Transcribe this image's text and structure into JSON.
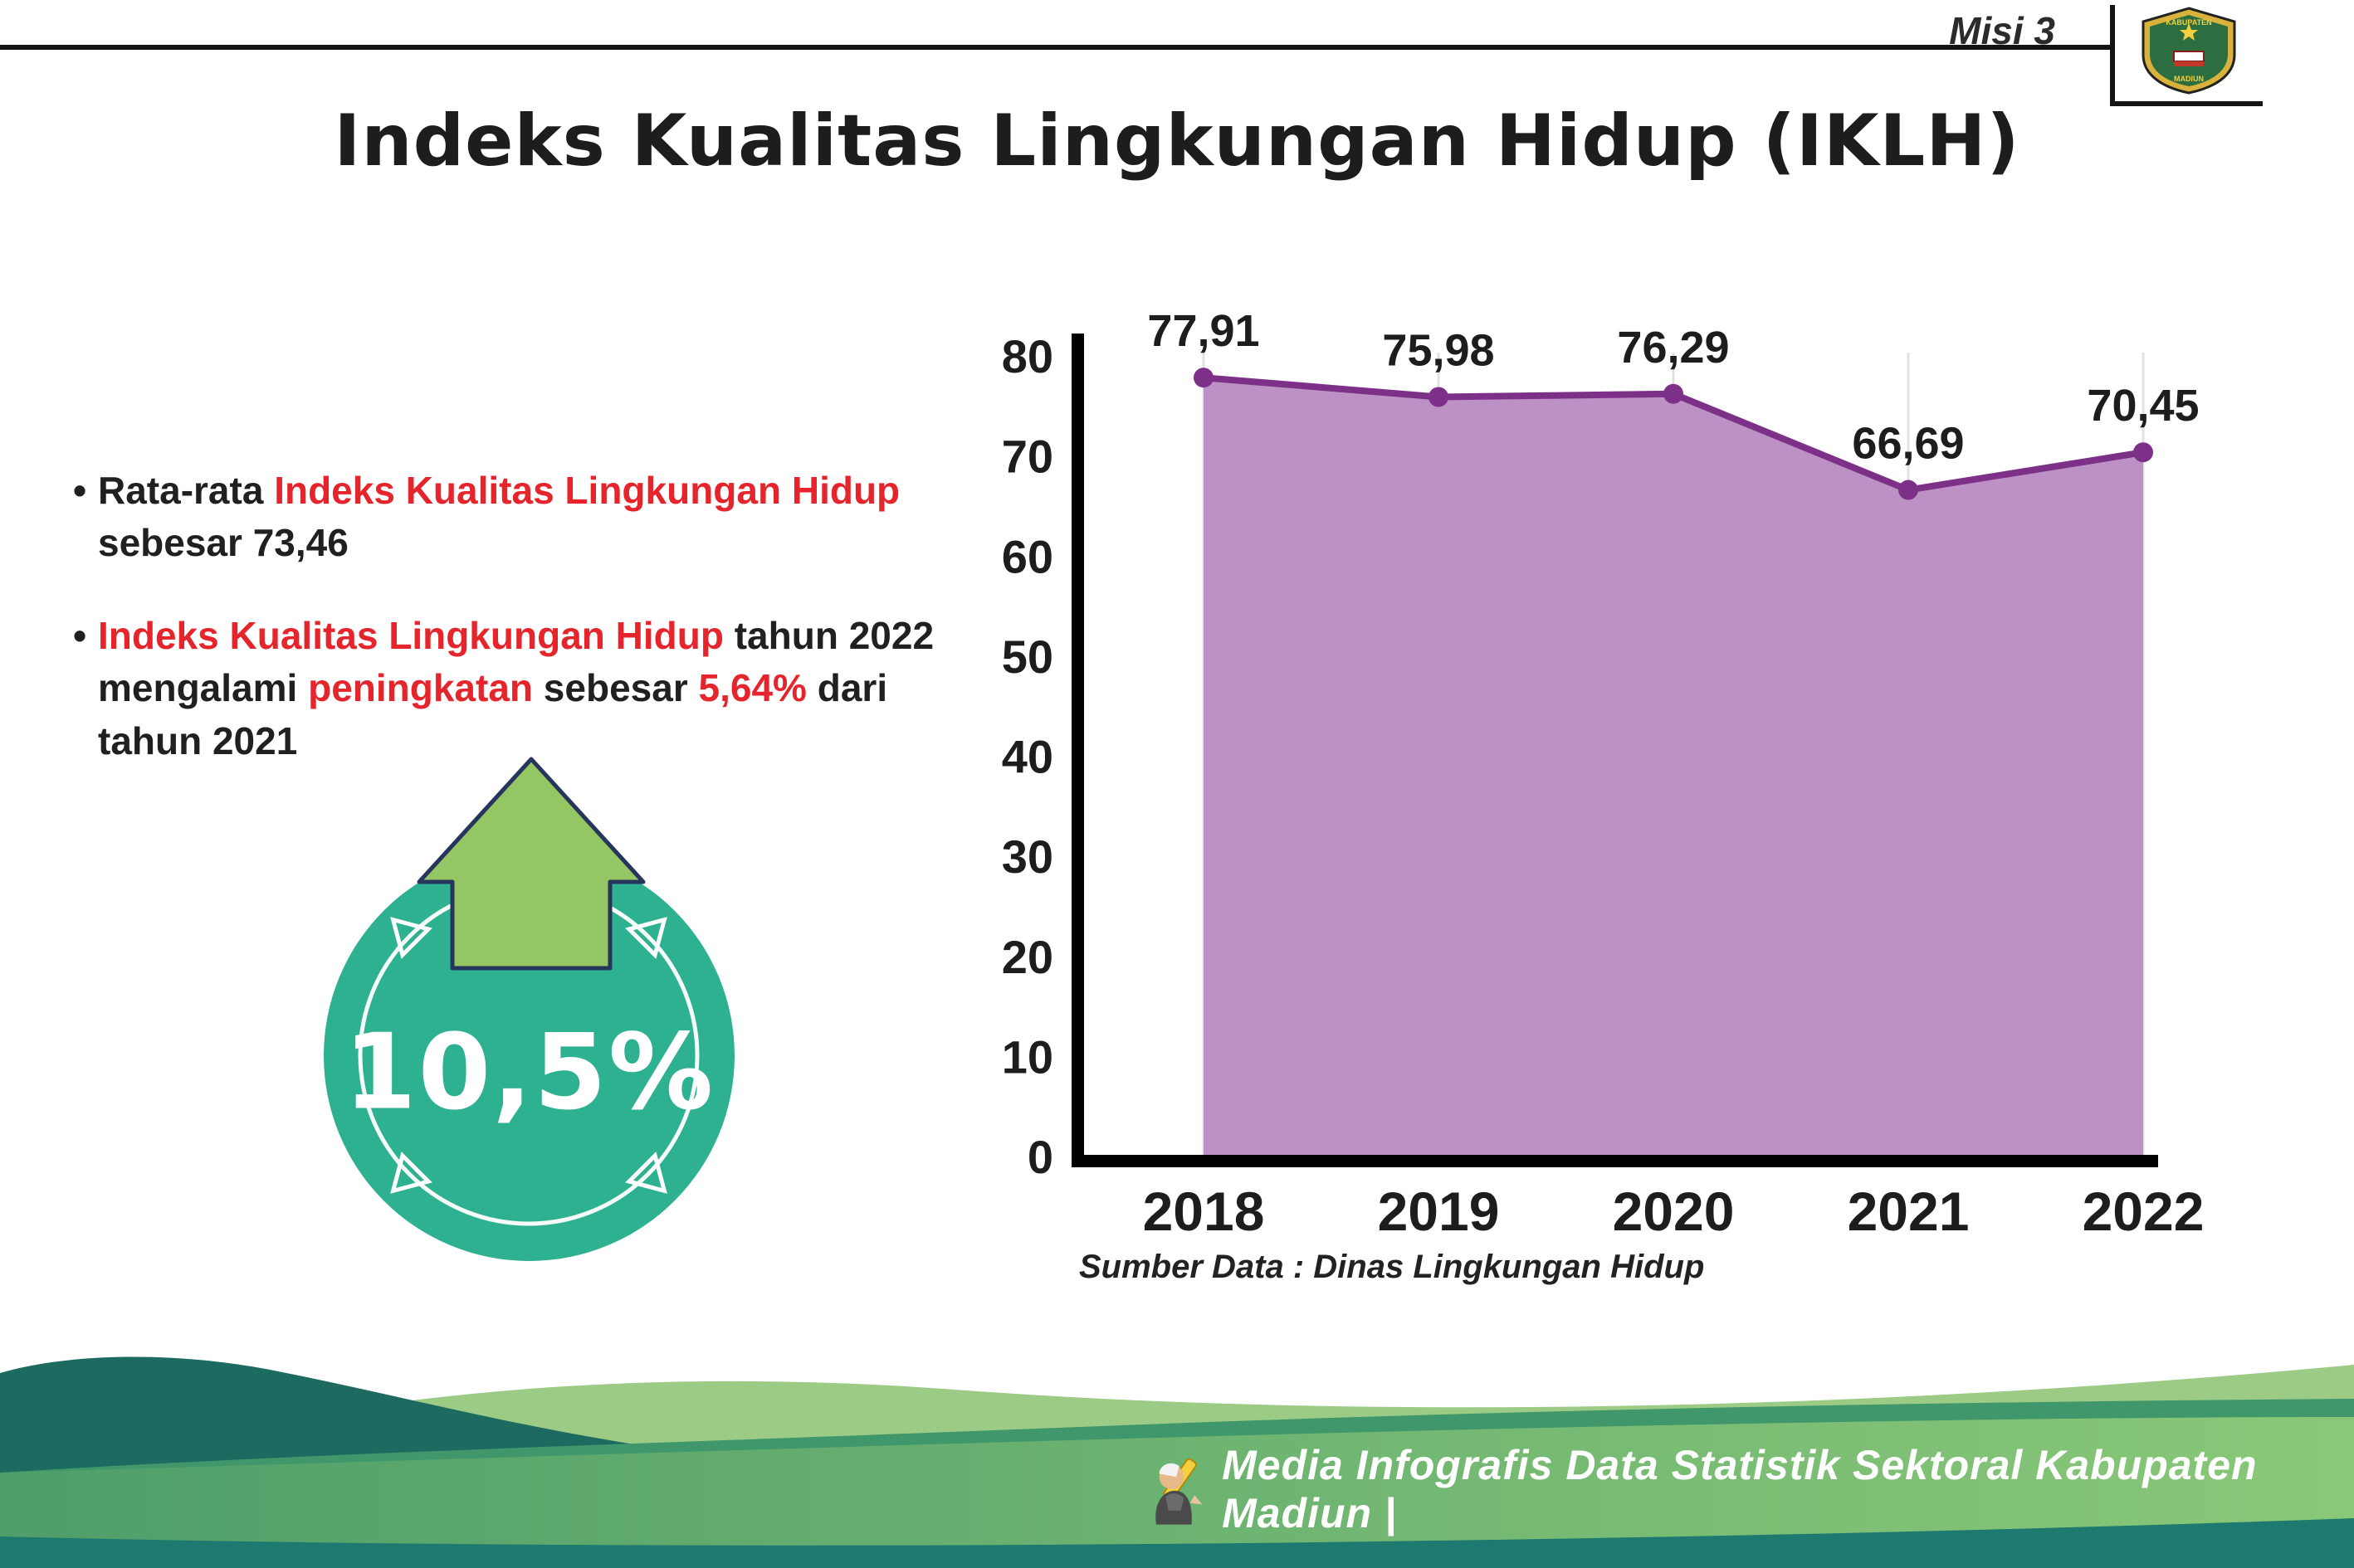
{
  "header": {
    "misi": "Misi 3",
    "title": "Indeks Kualitas Lingkungan Hidup (IKLH)",
    "logo_top": "KABUPATEN",
    "logo_bottom": "MADIUN"
  },
  "bullets": [
    {
      "segments": [
        {
          "text": "Rata-rata ",
          "color": "dark"
        },
        {
          "text": "Indeks Kualitas Lingkungan Hidup",
          "color": "red"
        },
        {
          "text": " sebesar 73,46",
          "color": "dark"
        }
      ]
    },
    {
      "segments": [
        {
          "text": "Indeks Kualitas Lingkungan Hidup",
          "color": "red"
        },
        {
          "text": " tahun 2022 mengalami ",
          "color": "dark"
        },
        {
          "text": "peningkatan",
          "color": "red"
        },
        {
          "text": " sebesar ",
          "color": "dark"
        },
        {
          "text": "5,64%",
          "color": "red"
        },
        {
          "text": " dari tahun 2021",
          "color": "dark"
        }
      ]
    }
  ],
  "badge": {
    "value": "10,5%",
    "circle_color": "#2eb190",
    "arrow_color": "#94c663"
  },
  "chart_data": {
    "type": "area",
    "categories": [
      "2018",
      "2019",
      "2020",
      "2021",
      "2022"
    ],
    "values": [
      77.91,
      75.98,
      76.29,
      66.69,
      70.45
    ],
    "value_labels": [
      "77,91",
      "75,98",
      "76,29",
      "66,69",
      "70,45"
    ],
    "ylim": [
      0,
      80
    ],
    "ytick_step": 10,
    "grid": "vertical-light",
    "legend": "none",
    "area_color": "#bd90c6",
    "line_color": "#7c3087",
    "source": "Sumber Data : Dinas Lingkungan Hidup"
  },
  "footer": {
    "text": "Media Infografis Data Statistik Sektoral Kabupaten Madiun |"
  },
  "colors": {
    "accent_red": "#e6242b",
    "teal_circle": "#2eb190",
    "arrow_green": "#94c663",
    "wave_dark_teal": "#1d6a60",
    "wave_light_green": "#9ccb86",
    "wave_mid_green": "#3f976b",
    "wave_bottom_strip": "#1e7a70"
  }
}
